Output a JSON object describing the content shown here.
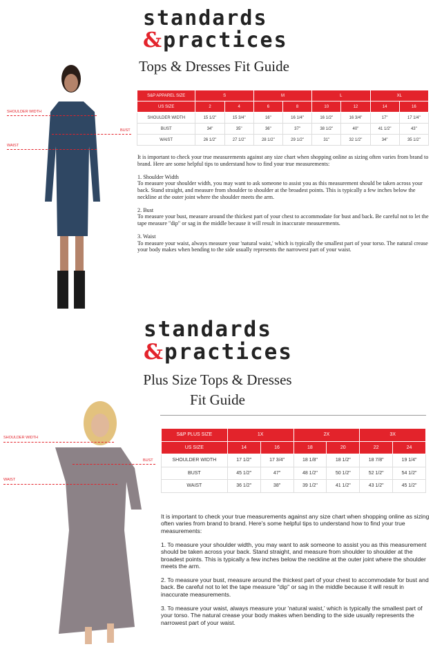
{
  "section1": {
    "logo_line1": "standards",
    "logo_amp": "&",
    "logo_line2": "practices",
    "title": "Tops & Dresses Fit Guide",
    "labels": {
      "shoulder": "SHOULDER WIDTH",
      "bust": "BUST",
      "waist": "WAIST"
    },
    "table": {
      "header_label": "S&P APPAREL SIZE",
      "groups": [
        "S",
        "M",
        "L",
        "XL"
      ],
      "us_label": "US SIZE",
      "us_sizes": [
        "2",
        "4",
        "6",
        "8",
        "10",
        "12",
        "14",
        "16"
      ],
      "rows": [
        {
          "label": "SHOULDER WIDTH",
          "values": [
            "15 1/2\"",
            "15 3/4\"",
            "16\"",
            "16 1/4\"",
            "16 1/2\"",
            "16 3/4\"",
            "17\"",
            "17 1/4\""
          ]
        },
        {
          "label": "BUST",
          "values": [
            "34\"",
            "35\"",
            "36\"",
            "37\"",
            "38 1/2\"",
            "40\"",
            "41 1/2\"",
            "43\""
          ]
        },
        {
          "label": "WAIST",
          "values": [
            "26 1/2\"",
            "27 1/2\"",
            "28 1/2\"",
            "29 1/2\"",
            "31\"",
            "32 1/2\"",
            "34\"",
            "35 1/2\""
          ]
        }
      ]
    },
    "paragraphs": [
      "It is important to check your true measurements against any size chart when shopping online as sizing often varies from brand to brand. Here are some helpful tips to understand how to find your true measurements:",
      "1. Shoulder Width\nTo measure your shoulder width, you may want to ask someone to assist you as this measurement should be taken across your back. Stand straight, and measure from shoulder to shoulder at the broadest points. This is typically a few inches below the neckline at the outer joint where the shoulder meets the arm.",
      "2. Bust\nTo measure your bust, measure around the thickest part of your chest to accommodate for bust and back. Be careful not to let the tape measure \"dip\" or sag in the middle because it will result in inaccurate measurements.",
      "3. Waist\nTo measure your waist, always measure your 'natural waist,' which is typically the smallest part of your torso.  The natural crease your body makes when bending to the side usually represents the narrowest part of your waist."
    ]
  },
  "section2": {
    "logo_line1": "standards",
    "logo_amp": "&",
    "logo_line2": "practices",
    "title_line1": "Plus Size Tops & Dresses",
    "title_line2": "Fit Guide",
    "labels": {
      "shoulder": "SHOULDER WIDTH",
      "bust": "BUST",
      "waist": "WAIST"
    },
    "table": {
      "header_label": "S&P PLUS SIZE",
      "groups": [
        "1X",
        "2X",
        "3X"
      ],
      "us_label": "US SIZE",
      "us_sizes": [
        "14",
        "16",
        "18",
        "20",
        "22",
        "24"
      ],
      "rows": [
        {
          "label": "SHOULDER WIDTH",
          "values": [
            "17 1/2\"",
            "17 3/4\"",
            "18 1/8\"",
            "18 1/2\"",
            "18 7/8\"",
            "19 1/4\""
          ]
        },
        {
          "label": "BUST",
          "values": [
            "45 1/2\"",
            "47\"",
            "48 1/2\"",
            "50 1/2\"",
            "52 1/2\"",
            "54 1/2\""
          ]
        },
        {
          "label": "WAIST",
          "values": [
            "36 1/2\"",
            "38\"",
            "39 1/2\"",
            "41 1/2\"",
            "43 1/2\"",
            "45 1/2\""
          ]
        }
      ]
    },
    "paragraphs": [
      "It is important to check your true measurements against any size chart when shopping online as sizing often varies from brand to brand. Here's some helpful tips to understand how to find your true measurements:",
      "1. To measure your shoulder width, you may want to ask someone to assist you as this measurement should be taken across your back. Stand straight, and measure from shoulder to shoulder at the broadest points. This is typically a few inches below the neckline at the outer joint where the shoulder meets the arm.",
      "2. To measure your bust, measure around the thickest part of your chest to accommodate for bust and back. Be careful not to let the tape measure \"dip\" or sag in the middle because it will result in inaccurate measurements.",
      "3. To measure your waist, always measure your  'natural waist,'  which is typically the smallest part of your torso.  The natural crease your body makes when bending to the side usually represents the narrowest part of your waist."
    ]
  },
  "colors": {
    "accent": "#e3232b",
    "dress1": "#2f4763",
    "dress2": "#8c8287"
  }
}
